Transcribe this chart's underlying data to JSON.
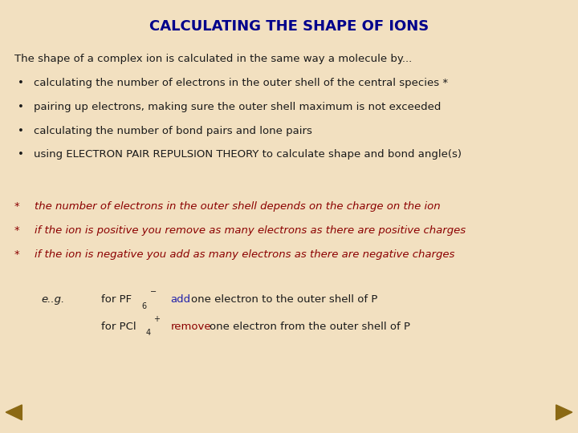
{
  "title": "CALCULATING THE SHAPE OF IONS",
  "title_color": "#00008B",
  "title_fontsize": 13,
  "bg_color": "#F2E0C0",
  "body_color": "#1a1a1a",
  "red_color": "#8B0000",
  "blue_color": "#2222AA",
  "arrow_color": "#8B6914",
  "intro_text": "The shape of a complex ion is calculated in the same way a molecule by...",
  "bullets": [
    "calculating the number of electrons in the outer shell of the central species *",
    "pairing up electrons, making sure the outer shell maximum is not exceeded",
    "calculating the number of bond pairs and lone pairs",
    "using ELECTRON PAIR REPULSION THEORY to calculate shape and bond angle(s)"
  ],
  "star_lines": [
    "the number of electrons in the outer shell depends on the charge on the ion",
    "if the ion is positive you remove as many electrons as there are positive charges",
    "if the ion is negative you add as many electrons as there are negative charges"
  ],
  "font_size": 9.5,
  "font_family": "DejaVu Sans"
}
